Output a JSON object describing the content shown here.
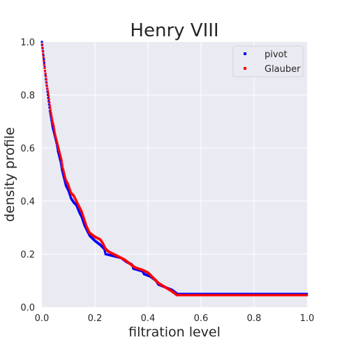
{
  "chart_data": {
    "type": "scatter",
    "title": "Henry VIII",
    "xlabel": "filtration level",
    "ylabel": "density profile",
    "xlim": [
      0,
      1
    ],
    "ylim": [
      0,
      1
    ],
    "xticks": [
      "0.0",
      "0.2",
      "0.4",
      "0.6",
      "0.8",
      "1.0"
    ],
    "yticks": [
      "0.0",
      "0.2",
      "0.4",
      "0.6",
      "0.8",
      "1.0"
    ],
    "grid": true,
    "legend_position": "top-right",
    "background_color": "#eaeaf2",
    "grid_color": "#ffffff",
    "series": [
      {
        "name": "pivot",
        "color": "#0000ff",
        "knots": [
          [
            0.0,
            1.0
          ],
          [
            0.005,
            0.96
          ],
          [
            0.01,
            0.91
          ],
          [
            0.015,
            0.86
          ],
          [
            0.02,
            0.82
          ],
          [
            0.025,
            0.78
          ],
          [
            0.03,
            0.74
          ],
          [
            0.035,
            0.71
          ],
          [
            0.04,
            0.68
          ],
          [
            0.045,
            0.66
          ],
          [
            0.05,
            0.64
          ],
          [
            0.055,
            0.62
          ],
          [
            0.06,
            0.59
          ],
          [
            0.065,
            0.57
          ],
          [
            0.07,
            0.55
          ],
          [
            0.075,
            0.52
          ],
          [
            0.08,
            0.5
          ],
          [
            0.085,
            0.48
          ],
          [
            0.09,
            0.46
          ],
          [
            0.1,
            0.44
          ],
          [
            0.11,
            0.41
          ],
          [
            0.12,
            0.395
          ],
          [
            0.13,
            0.385
          ],
          [
            0.14,
            0.36
          ],
          [
            0.15,
            0.34
          ],
          [
            0.16,
            0.31
          ],
          [
            0.17,
            0.29
          ],
          [
            0.18,
            0.27
          ],
          [
            0.2,
            0.25
          ],
          [
            0.22,
            0.235
          ],
          [
            0.235,
            0.22
          ],
          [
            0.24,
            0.2
          ],
          [
            0.3,
            0.185
          ],
          [
            0.32,
            0.17
          ],
          [
            0.34,
            0.16
          ],
          [
            0.345,
            0.145
          ],
          [
            0.38,
            0.135
          ],
          [
            0.385,
            0.125
          ],
          [
            0.41,
            0.115
          ],
          [
            0.43,
            0.1
          ],
          [
            0.44,
            0.085
          ],
          [
            0.49,
            0.065
          ],
          [
            0.51,
            0.05
          ],
          [
            1.0,
            0.05
          ]
        ]
      },
      {
        "name": "Glauber",
        "color": "#ff0000",
        "knots": [
          [
            0.0,
            0.99
          ],
          [
            0.005,
            0.95
          ],
          [
            0.01,
            0.905
          ],
          [
            0.015,
            0.87
          ],
          [
            0.02,
            0.83
          ],
          [
            0.025,
            0.8
          ],
          [
            0.03,
            0.76
          ],
          [
            0.035,
            0.73
          ],
          [
            0.04,
            0.7
          ],
          [
            0.045,
            0.68
          ],
          [
            0.05,
            0.65
          ],
          [
            0.055,
            0.63
          ],
          [
            0.06,
            0.61
          ],
          [
            0.065,
            0.59
          ],
          [
            0.07,
            0.57
          ],
          [
            0.075,
            0.55
          ],
          [
            0.08,
            0.52
          ],
          [
            0.085,
            0.5
          ],
          [
            0.09,
            0.48
          ],
          [
            0.1,
            0.46
          ],
          [
            0.11,
            0.43
          ],
          [
            0.12,
            0.42
          ],
          [
            0.13,
            0.4
          ],
          [
            0.14,
            0.38
          ],
          [
            0.15,
            0.36
          ],
          [
            0.16,
            0.33
          ],
          [
            0.17,
            0.3
          ],
          [
            0.18,
            0.28
          ],
          [
            0.2,
            0.265
          ],
          [
            0.22,
            0.255
          ],
          [
            0.23,
            0.24
          ],
          [
            0.24,
            0.22
          ],
          [
            0.25,
            0.21
          ],
          [
            0.27,
            0.2
          ],
          [
            0.31,
            0.18
          ],
          [
            0.33,
            0.165
          ],
          [
            0.35,
            0.15
          ],
          [
            0.38,
            0.14
          ],
          [
            0.4,
            0.13
          ],
          [
            0.42,
            0.11
          ],
          [
            0.44,
            0.09
          ],
          [
            0.49,
            0.06
          ],
          [
            0.51,
            0.045
          ],
          [
            1.0,
            0.045
          ]
        ]
      }
    ]
  }
}
